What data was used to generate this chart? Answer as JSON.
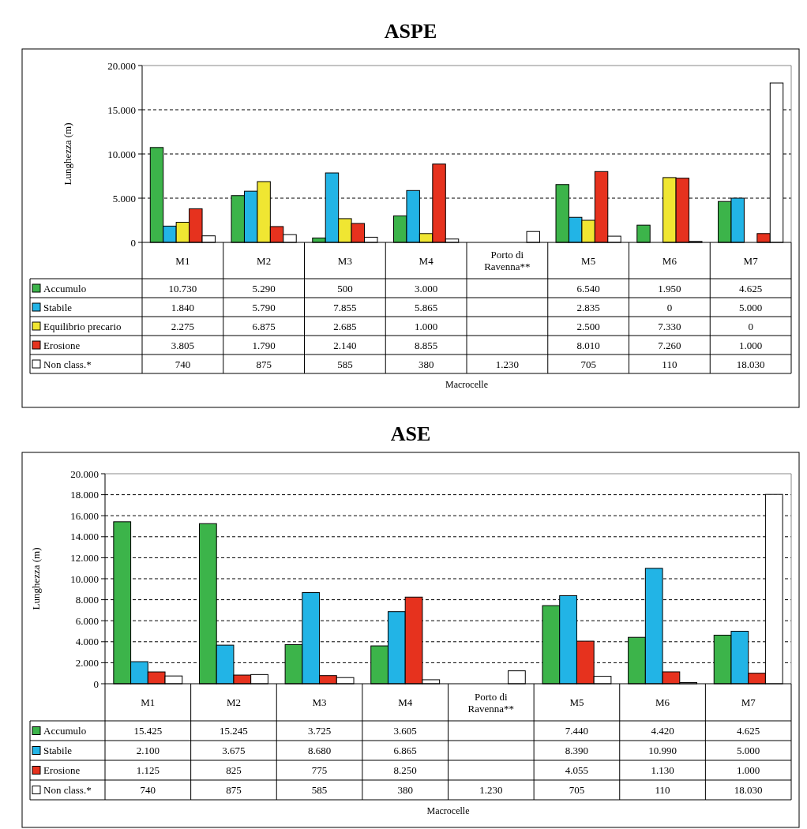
{
  "chart_data": [
    {
      "type": "bar",
      "title": "ASPE",
      "xlabel": "Macrocelle",
      "ylabel": "Lunghezza (m)",
      "categories": [
        "M1",
        "M2",
        "M3",
        "M4",
        "Porto di Ravenna**",
        "M5",
        "M6",
        "M7"
      ],
      "series": [
        {
          "name": "Accumulo",
          "color": "#3cb44a",
          "values": [
            10730,
            5290,
            500,
            3000,
            null,
            6540,
            1950,
            4625
          ],
          "value_labels": [
            "10.730",
            "5.290",
            "500",
            "3.000",
            null,
            "6.540",
            "1.950",
            "4.625"
          ]
        },
        {
          "name": "Stabile",
          "color": "#22b4e6",
          "values": [
            1840,
            5790,
            7855,
            5865,
            null,
            2835,
            0,
            5000
          ],
          "value_labels": [
            "1.840",
            "5.790",
            "7.855",
            "5.865",
            null,
            "2.835",
            "0",
            "5.000"
          ]
        },
        {
          "name": "Equilibrio precario",
          "color": "#f0e632",
          "values": [
            2275,
            6875,
            2685,
            1000,
            null,
            2500,
            7330,
            0
          ],
          "value_labels": [
            "2.275",
            "6.875",
            "2.685",
            "1.000",
            null,
            "2.500",
            "7.330",
            "0"
          ]
        },
        {
          "name": "Erosione",
          "color": "#e6321e",
          "values": [
            3805,
            1790,
            2140,
            8855,
            null,
            8010,
            7260,
            1000
          ],
          "value_labels": [
            "3.805",
            "1.790",
            "2.140",
            "8.855",
            null,
            "8.010",
            "7.260",
            "1.000"
          ]
        },
        {
          "name": "Non class.*",
          "color": "#ffffff",
          "values": [
            740,
            875,
            585,
            380,
            1230,
            705,
            110,
            18030
          ],
          "value_labels": [
            "740",
            "875",
            "585",
            "380",
            "1.230",
            "705",
            "110",
            "18.030"
          ]
        }
      ],
      "ylim": [
        0,
        20000
      ],
      "yticks": [
        {
          "value": 0,
          "label": "0"
        },
        {
          "value": 5000,
          "label": "5.000"
        },
        {
          "value": 10000,
          "label": "10.000"
        },
        {
          "value": 15000,
          "label": "15.000"
        },
        {
          "value": 20000,
          "label": "20.000"
        }
      ],
      "grid": "y",
      "legend": "bottom"
    },
    {
      "type": "bar",
      "title": "ASE",
      "xlabel": "Macrocelle",
      "ylabel": "Lunghezza (m)",
      "categories": [
        "M1",
        "M2",
        "M3",
        "M4",
        "Porto di Ravenna**",
        "M5",
        "M6",
        "M7"
      ],
      "series": [
        {
          "name": "Accumulo",
          "color": "#3cb44a",
          "values": [
            15425,
            15245,
            3725,
            3605,
            null,
            7440,
            4420,
            4625
          ],
          "value_labels": [
            "15.425",
            "15.245",
            "3.725",
            "3.605",
            null,
            "7.440",
            "4.420",
            "4.625"
          ]
        },
        {
          "name": "Stabile",
          "color": "#22b4e6",
          "values": [
            2100,
            3675,
            8680,
            6865,
            null,
            8390,
            10990,
            5000
          ],
          "value_labels": [
            "2.100",
            "3.675",
            "8.680",
            "6.865",
            null,
            "8.390",
            "10.990",
            "5.000"
          ]
        },
        {
          "name": "Erosione",
          "color": "#e6321e",
          "values": [
            1125,
            825,
            775,
            8250,
            null,
            4055,
            1130,
            1000
          ],
          "value_labels": [
            "1.125",
            "825",
            "775",
            "8.250",
            null,
            "4.055",
            "1.130",
            "1.000"
          ]
        },
        {
          "name": "Non class.*",
          "color": "#ffffff",
          "values": [
            740,
            875,
            585,
            380,
            1230,
            705,
            110,
            18030
          ],
          "value_labels": [
            "740",
            "875",
            "585",
            "380",
            "1.230",
            "705",
            "110",
            "18.030"
          ]
        }
      ],
      "ylim": [
        0,
        20000
      ],
      "yticks": [
        {
          "value": 0,
          "label": "0"
        },
        {
          "value": 2000,
          "label": "2.000"
        },
        {
          "value": 4000,
          "label": "4.000"
        },
        {
          "value": 6000,
          "label": "6.000"
        },
        {
          "value": 8000,
          "label": "8.000"
        },
        {
          "value": 10000,
          "label": "10.000"
        },
        {
          "value": 12000,
          "label": "12.000"
        },
        {
          "value": 14000,
          "label": "14.000"
        },
        {
          "value": 16000,
          "label": "16.000"
        },
        {
          "value": 18000,
          "label": "18.000"
        },
        {
          "value": 20000,
          "label": "20.000"
        }
      ],
      "grid": "y",
      "legend": "bottom"
    }
  ]
}
